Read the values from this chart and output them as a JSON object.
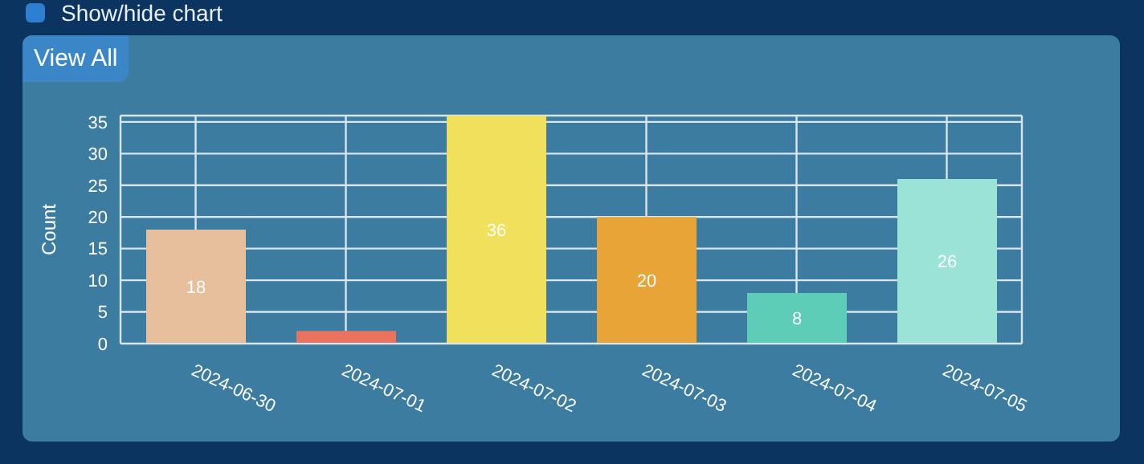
{
  "chart_data": {
    "type": "bar",
    "ylabel": "Count",
    "categories": [
      "2024-06-30",
      "2024-07-01",
      "2024-07-02",
      "2024-07-03",
      "2024-07-04",
      "2024-07-05"
    ],
    "values": [
      18,
      2,
      36,
      20,
      8,
      26
    ],
    "value_labels": [
      "18",
      null,
      "36",
      "20",
      "8",
      "26"
    ],
    "colors": [
      "#e8bf9d",
      "#ea735f",
      "#f1e05b",
      "#e8a437",
      "#5ecdb8",
      "#9ae3d6"
    ],
    "ylim": [
      0,
      36
    ],
    "yticks": [
      0,
      5,
      10,
      15,
      20,
      25,
      30,
      35
    ],
    "grid": true,
    "annotations": [
      "Show/hide chart",
      "View All"
    ]
  }
}
